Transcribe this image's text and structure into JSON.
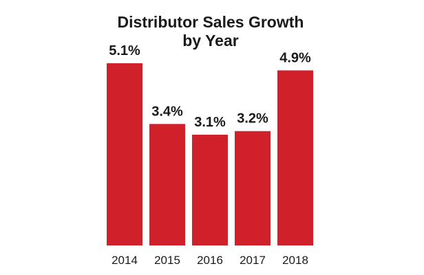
{
  "chart_data": {
    "type": "bar",
    "title_lines": [
      "Distributor Sales Growth",
      "by Year"
    ],
    "categories": [
      "2014",
      "2015",
      "2016",
      "2017",
      "2018"
    ],
    "values": [
      5.1,
      3.4,
      3.1,
      3.2,
      4.9
    ],
    "data_labels": [
      "5.1%",
      "3.4%",
      "3.1%",
      "3.2%",
      "4.9%"
    ],
    "xlabel": "",
    "ylabel": "",
    "ylim": [
      0,
      5.1
    ],
    "grid": false,
    "legend": "none",
    "bar_color": "#d0202a",
    "text_color": "#1a1a1a"
  }
}
